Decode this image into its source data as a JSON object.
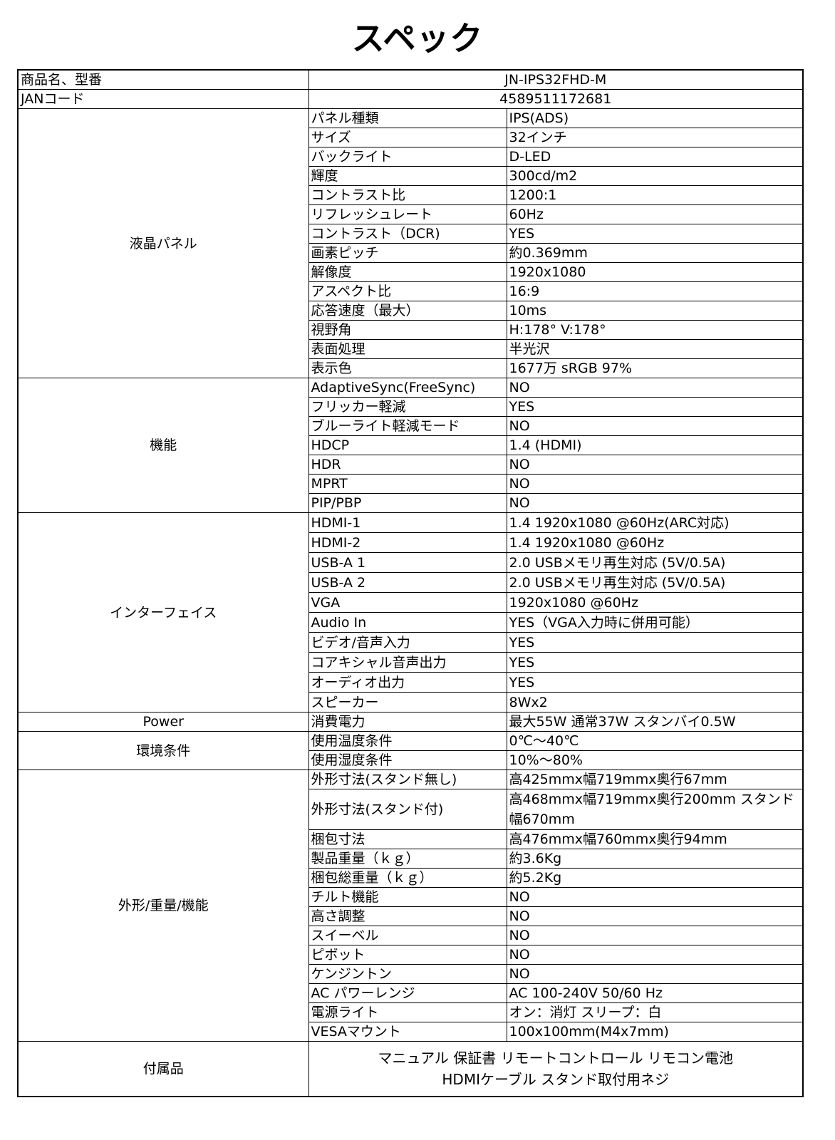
{
  "title": "スペック",
  "top_rows": [
    {
      "label": "商品名、型番",
      "value": "JN-IPS32FHD-M"
    },
    {
      "label": "JANコード",
      "value": "4589511172681"
    }
  ],
  "sections": [
    {
      "key": "panel",
      "label": "液晶パネル",
      "rows": [
        [
          "パネル種類",
          "IPS(ADS)"
        ],
        [
          "サイズ",
          "32インチ"
        ],
        [
          "バックライト",
          "D-LED"
        ],
        [
          "輝度",
          "300cd/m2"
        ],
        [
          "コントラスト比",
          "1200:1"
        ],
        [
          "リフレッシュレート",
          "60Hz"
        ],
        [
          "コントラスト（DCR)",
          "YES"
        ],
        [
          "画素ピッチ",
          "約0.369mm"
        ],
        [
          "解像度",
          "1920x1080"
        ],
        [
          "アスペクト比",
          "16:9"
        ],
        [
          "応答速度（最大）",
          "10ms"
        ],
        [
          "視野角",
          "H:178° V:178°"
        ],
        [
          "表面処理",
          "半光沢"
        ],
        [
          "表示色",
          "1677万 sRGB 97%"
        ]
      ]
    },
    {
      "key": "features",
      "label": "機能",
      "rows": [
        [
          "AdaptiveSync(FreeSync)",
          "NO"
        ],
        [
          "フリッカー軽減",
          "YES"
        ],
        [
          "ブルーライト軽減モード",
          "NO"
        ],
        [
          "HDCP",
          "1.4 (HDMI)"
        ],
        [
          "HDR",
          "NO"
        ],
        [
          "MPRT",
          "NO"
        ],
        [
          "PIP/PBP",
          "NO"
        ]
      ]
    },
    {
      "key": "interface",
      "label": "インターフェイス",
      "rows": [
        [
          "HDMI-1",
          "1.4 1920x1080 @60Hz(ARC対応)"
        ],
        [
          "HDMI-2",
          "1.4 1920x1080 @60Hz"
        ],
        [
          "USB-A 1",
          "2.0 USBメモリ再生対応 (5V/0.5A)"
        ],
        [
          "USB-A 2",
          "2.0 USBメモリ再生対応 (5V/0.5A)"
        ],
        [
          "VGA",
          "1920x1080 @60Hz"
        ],
        [
          "Audio In",
          "YES（VGA入力時に併用可能）"
        ],
        [
          "ビデオ/音声入力",
          "YES"
        ],
        [
          "コアキシャル音声出力",
          "YES"
        ],
        [
          "オーディオ出力",
          "YES"
        ],
        [
          "スピーカー",
          "8Wx2"
        ]
      ]
    },
    {
      "key": "power",
      "label": "Power",
      "rows": [
        [
          "消費電力",
          "最大55W 通常37W スタンバイ0.5W"
        ]
      ]
    },
    {
      "key": "environment",
      "label": "環境条件",
      "rows": [
        [
          "使用温度条件",
          "0℃～40℃"
        ],
        [
          "使用湿度条件",
          "10%～80%"
        ]
      ]
    },
    {
      "key": "physical",
      "label": "外形/重量/機能",
      "rows": [
        [
          "外形寸法(スタンド無し)",
          "高425mmx幅719mmx奥行67mm"
        ],
        [
          "外形寸法(スタンド付)",
          "高468mmx幅719mmx奥行200mm スタンド幅670mm"
        ],
        [
          "梱包寸法",
          "高476mmx幅760mmx奥行94mm"
        ],
        [
          "製品重量（ｋｇ）",
          "約3.6Kg"
        ],
        [
          "梱包総重量（ｋｇ）",
          "約5.2Kg"
        ],
        [
          "チルト機能",
          "NO"
        ],
        [
          "高さ調整",
          "NO"
        ],
        [
          "スイーベル",
          "NO"
        ],
        [
          "ピボット",
          "NO"
        ],
        [
          "ケンジントン",
          "NO"
        ],
        [
          "AC パワーレンジ",
          "AC 100-240V 50/60 Hz"
        ],
        [
          "電源ライト",
          "オン：消灯 スリープ：白"
        ],
        [
          "VESAマウント",
          "100x100mm(M4x7mm)"
        ]
      ]
    }
  ],
  "accessories": {
    "label": "付属品",
    "line1": "マニュアル 保証書 リモートコントロール リモコン電池",
    "line2": "HDMIケーブル スタンド取付用ネジ"
  }
}
